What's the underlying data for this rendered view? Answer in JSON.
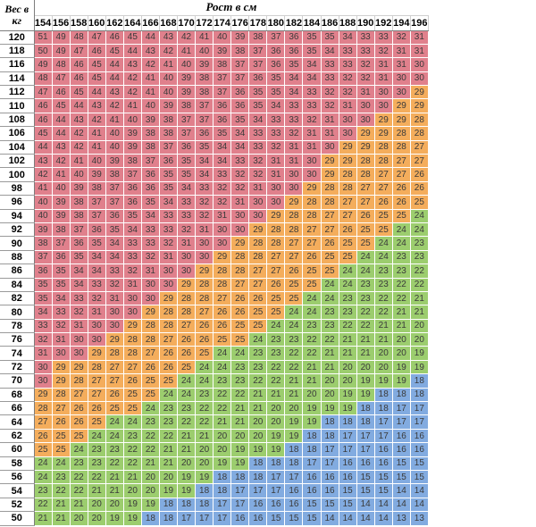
{
  "chart_data": {
    "type": "heatmap",
    "title": "Рост в см",
    "corner_label_line1": "Вес в",
    "corner_label_line2": "кг",
    "x": [
      154,
      156,
      158,
      160,
      162,
      164,
      166,
      168,
      170,
      172,
      174,
      176,
      178,
      180,
      182,
      184,
      186,
      188,
      190,
      192,
      194,
      196
    ],
    "y": [
      120,
      118,
      116,
      114,
      112,
      110,
      108,
      106,
      104,
      102,
      100,
      98,
      96,
      94,
      92,
      90,
      88,
      86,
      84,
      82,
      80,
      78,
      76,
      74,
      72,
      70,
      68,
      66,
      64,
      62,
      60,
      58,
      56,
      54,
      52,
      50
    ],
    "rows": [
      [
        51,
        49,
        48,
        47,
        46,
        45,
        44,
        43,
        42,
        41,
        40,
        39,
        38,
        37,
        36,
        35,
        35,
        34,
        33,
        33,
        32,
        31
      ],
      [
        50,
        49,
        47,
        46,
        45,
        44,
        43,
        42,
        41,
        40,
        39,
        38,
        37,
        36,
        36,
        35,
        34,
        33,
        33,
        32,
        31,
        31
      ],
      [
        49,
        48,
        46,
        45,
        44,
        43,
        42,
        41,
        40,
        39,
        38,
        37,
        37,
        36,
        35,
        34,
        33,
        33,
        32,
        31,
        31,
        30
      ],
      [
        48,
        47,
        46,
        45,
        44,
        42,
        41,
        40,
        39,
        38,
        37,
        37,
        36,
        35,
        34,
        34,
        33,
        32,
        32,
        31,
        30,
        30
      ],
      [
        47,
        46,
        45,
        44,
        43,
        42,
        41,
        40,
        39,
        38,
        37,
        36,
        35,
        35,
        34,
        33,
        32,
        32,
        31,
        30,
        30,
        29
      ],
      [
        46,
        45,
        44,
        43,
        42,
        41,
        40,
        39,
        38,
        37,
        36,
        36,
        35,
        34,
        33,
        33,
        32,
        31,
        30,
        30,
        29,
        29
      ],
      [
        46,
        44,
        43,
        42,
        41,
        40,
        39,
        38,
        37,
        37,
        36,
        35,
        34,
        33,
        33,
        32,
        31,
        30,
        30,
        29,
        29,
        28
      ],
      [
        45,
        44,
        42,
        41,
        40,
        39,
        38,
        38,
        37,
        36,
        35,
        34,
        33,
        33,
        32,
        31,
        31,
        30,
        29,
        29,
        28,
        28
      ],
      [
        44,
        43,
        42,
        41,
        40,
        39,
        38,
        37,
        36,
        35,
        34,
        34,
        33,
        32,
        31,
        31,
        30,
        29,
        29,
        28,
        28,
        27
      ],
      [
        43,
        42,
        41,
        40,
        39,
        38,
        37,
        36,
        35,
        34,
        34,
        33,
        32,
        31,
        31,
        30,
        29,
        29,
        28,
        28,
        27,
        27
      ],
      [
        42,
        41,
        40,
        39,
        38,
        37,
        36,
        35,
        35,
        34,
        33,
        32,
        32,
        31,
        30,
        30,
        29,
        28,
        28,
        27,
        27,
        26
      ],
      [
        41,
        40,
        39,
        38,
        37,
        36,
        36,
        35,
        34,
        33,
        32,
        32,
        31,
        30,
        30,
        29,
        28,
        28,
        27,
        27,
        26,
        26
      ],
      [
        40,
        39,
        38,
        37,
        37,
        36,
        35,
        34,
        33,
        32,
        32,
        31,
        30,
        30,
        29,
        28,
        28,
        27,
        27,
        26,
        26,
        25
      ],
      [
        40,
        39,
        38,
        37,
        36,
        35,
        34,
        33,
        33,
        32,
        31,
        30,
        30,
        29,
        28,
        28,
        27,
        27,
        26,
        25,
        25,
        24
      ],
      [
        39,
        38,
        37,
        36,
        35,
        34,
        33,
        33,
        32,
        31,
        30,
        30,
        29,
        28,
        28,
        27,
        27,
        26,
        25,
        25,
        24,
        24
      ],
      [
        38,
        37,
        36,
        35,
        34,
        33,
        33,
        32,
        31,
        30,
        30,
        29,
        28,
        28,
        27,
        27,
        26,
        25,
        25,
        24,
        24,
        23
      ],
      [
        37,
        36,
        35,
        34,
        34,
        33,
        32,
        31,
        30,
        30,
        29,
        28,
        28,
        27,
        27,
        26,
        25,
        25,
        24,
        24,
        23,
        23
      ],
      [
        36,
        35,
        34,
        34,
        33,
        32,
        31,
        30,
        30,
        29,
        28,
        28,
        27,
        27,
        26,
        25,
        25,
        24,
        24,
        23,
        23,
        22
      ],
      [
        35,
        35,
        34,
        33,
        32,
        31,
        30,
        30,
        29,
        28,
        28,
        27,
        27,
        26,
        25,
        25,
        24,
        24,
        23,
        23,
        22,
        22
      ],
      [
        35,
        34,
        33,
        32,
        31,
        30,
        30,
        29,
        28,
        28,
        27,
        26,
        26,
        25,
        25,
        24,
        24,
        23,
        23,
        22,
        22,
        21
      ],
      [
        34,
        33,
        32,
        31,
        30,
        30,
        29,
        28,
        28,
        27,
        26,
        26,
        25,
        25,
        24,
        24,
        23,
        23,
        22,
        22,
        21,
        21
      ],
      [
        33,
        32,
        31,
        30,
        30,
        29,
        28,
        28,
        27,
        26,
        26,
        25,
        25,
        24,
        24,
        23,
        23,
        22,
        22,
        21,
        21,
        20
      ],
      [
        32,
        31,
        30,
        30,
        29,
        28,
        28,
        27,
        26,
        26,
        25,
        25,
        24,
        23,
        23,
        22,
        22,
        21,
        21,
        21,
        20,
        20
      ],
      [
        31,
        30,
        30,
        29,
        28,
        28,
        27,
        26,
        26,
        25,
        24,
        24,
        23,
        23,
        22,
        22,
        21,
        21,
        21,
        20,
        20,
        19
      ],
      [
        30,
        29,
        29,
        28,
        27,
        27,
        26,
        26,
        25,
        24,
        24,
        23,
        23,
        22,
        22,
        21,
        21,
        20,
        20,
        20,
        19,
        19
      ],
      [
        30,
        29,
        28,
        27,
        27,
        26,
        25,
        25,
        24,
        24,
        23,
        23,
        22,
        22,
        21,
        21,
        20,
        20,
        19,
        19,
        19,
        18
      ],
      [
        29,
        28,
        27,
        27,
        26,
        25,
        25,
        24,
        24,
        23,
        22,
        22,
        21,
        21,
        21,
        20,
        20,
        19,
        19,
        18,
        18,
        18
      ],
      [
        28,
        27,
        26,
        26,
        25,
        25,
        24,
        23,
        23,
        22,
        22,
        21,
        21,
        20,
        20,
        19,
        19,
        19,
        18,
        18,
        17,
        17
      ],
      [
        27,
        26,
        26,
        25,
        24,
        24,
        23,
        23,
        22,
        22,
        21,
        21,
        20,
        20,
        19,
        19,
        18,
        18,
        18,
        17,
        17,
        17
      ],
      [
        26,
        25,
        25,
        24,
        24,
        23,
        22,
        22,
        21,
        21,
        20,
        20,
        20,
        19,
        19,
        18,
        18,
        17,
        17,
        17,
        16,
        16
      ],
      [
        25,
        25,
        24,
        23,
        23,
        22,
        22,
        21,
        21,
        20,
        20,
        19,
        19,
        19,
        18,
        18,
        17,
        17,
        17,
        16,
        16,
        16
      ],
      [
        24,
        24,
        23,
        23,
        22,
        22,
        21,
        21,
        20,
        20,
        19,
        19,
        18,
        18,
        18,
        17,
        17,
        16,
        16,
        16,
        15,
        15
      ],
      [
        24,
        23,
        22,
        22,
        21,
        21,
        20,
        20,
        19,
        19,
        18,
        18,
        18,
        17,
        17,
        16,
        16,
        16,
        15,
        15,
        15,
        15
      ],
      [
        23,
        22,
        22,
        21,
        21,
        20,
        20,
        19,
        19,
        18,
        18,
        17,
        17,
        17,
        16,
        16,
        16,
        15,
        15,
        15,
        14,
        14
      ],
      [
        22,
        21,
        21,
        20,
        20,
        19,
        19,
        18,
        18,
        18,
        17,
        17,
        16,
        16,
        16,
        15,
        15,
        15,
        14,
        14,
        14,
        14
      ],
      [
        21,
        21,
        20,
        20,
        19,
        19,
        18,
        18,
        17,
        17,
        17,
        16,
        16,
        15,
        15,
        15,
        14,
        14,
        14,
        14,
        13,
        13
      ]
    ],
    "color_bins": [
      {
        "min": 30,
        "color": "#e0808c"
      },
      {
        "min": 25,
        "max": 29,
        "color": "#f4ad5c"
      },
      {
        "min": 19,
        "max": 24,
        "color": "#9ccd6e"
      },
      {
        "max": 18,
        "color": "#82abe0"
      }
    ],
    "legend": "none",
    "grid": true
  }
}
